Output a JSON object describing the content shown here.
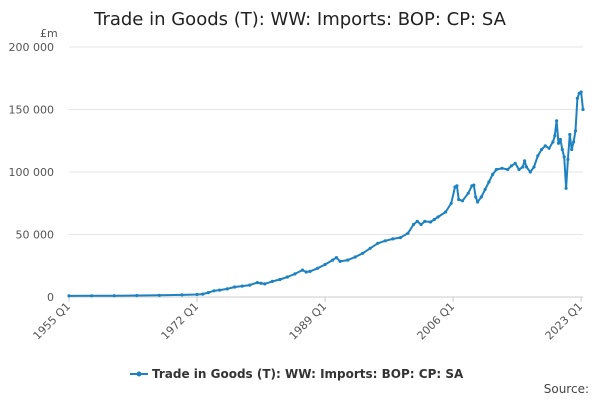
{
  "chart_data": {
    "type": "line",
    "title": "Trade in Goods (T): WW: Imports: BOP: CP: SA",
    "unit_label": "£m",
    "ylim": [
      0,
      200000
    ],
    "yticks": [
      {
        "value": 0,
        "label": "0"
      },
      {
        "value": 50000,
        "label": "50 000"
      },
      {
        "value": 100000,
        "label": "100 000"
      },
      {
        "value": 150000,
        "label": "150 000"
      },
      {
        "value": 200000,
        "label": "200 000"
      }
    ],
    "xlim": [
      1955.0,
      2023.25
    ],
    "xticks": [
      {
        "value": 1955.0,
        "label": "1955 Q1"
      },
      {
        "value": 1972.0,
        "label": "1972 Q1"
      },
      {
        "value": 1989.0,
        "label": "1989 Q1"
      },
      {
        "value": 2006.0,
        "label": "2006 Q1"
      },
      {
        "value": 2023.0,
        "label": "2023 Q1"
      }
    ],
    "grid": true,
    "legend_position": "bottom",
    "source_label": "Source:",
    "colors": {
      "series": "#1f82c0",
      "grid": "#e6e6e6",
      "axis": "#cccccc"
    },
    "series": [
      {
        "name": "Trade in Goods (T): WW: Imports: BOP: CP: SA",
        "points": [
          [
            1955.0,
            900
          ],
          [
            1958.0,
            950
          ],
          [
            1961.0,
            1050
          ],
          [
            1964.0,
            1200
          ],
          [
            1967.0,
            1350
          ],
          [
            1970.0,
            1650
          ],
          [
            1972.0,
            2000
          ],
          [
            1972.75,
            2300
          ],
          [
            1973.5,
            3500
          ],
          [
            1974.25,
            5000
          ],
          [
            1975.0,
            5500
          ],
          [
            1976.0,
            6500
          ],
          [
            1977.0,
            8000
          ],
          [
            1978.0,
            8700
          ],
          [
            1979.0,
            9500
          ],
          [
            1980.0,
            11500
          ],
          [
            1980.5,
            11000
          ],
          [
            1981.0,
            10500
          ],
          [
            1982.0,
            12500
          ],
          [
            1983.0,
            14000
          ],
          [
            1984.0,
            16000
          ],
          [
            1985.0,
            18500
          ],
          [
            1986.0,
            21500
          ],
          [
            1986.5,
            20000
          ],
          [
            1987.0,
            20500
          ],
          [
            1988.0,
            23000
          ],
          [
            1989.0,
            26000
          ],
          [
            1990.0,
            29500
          ],
          [
            1990.5,
            31500
          ],
          [
            1991.0,
            28500
          ],
          [
            1992.0,
            29500
          ],
          [
            1993.0,
            32000
          ],
          [
            1994.0,
            35000
          ],
          [
            1995.0,
            39000
          ],
          [
            1996.0,
            43000
          ],
          [
            1997.0,
            45000
          ],
          [
            1998.0,
            46500
          ],
          [
            1999.0,
            47500
          ],
          [
            2000.0,
            51000
          ],
          [
            2000.75,
            58000
          ],
          [
            2001.25,
            60500
          ],
          [
            2001.75,
            58000
          ],
          [
            2002.25,
            60500
          ],
          [
            2003.0,
            60000
          ],
          [
            2003.5,
            62000
          ],
          [
            2004.0,
            64000
          ],
          [
            2005.0,
            68000
          ],
          [
            2005.75,
            75000
          ],
          [
            2006.25,
            88000
          ],
          [
            2006.5,
            89000
          ],
          [
            2006.75,
            78000
          ],
          [
            2007.25,
            77000
          ],
          [
            2008.0,
            83000
          ],
          [
            2008.5,
            89000
          ],
          [
            2008.75,
            89500
          ],
          [
            2009.0,
            80000
          ],
          [
            2009.25,
            76000
          ],
          [
            2009.75,
            80000
          ],
          [
            2010.25,
            86000
          ],
          [
            2010.75,
            92000
          ],
          [
            2011.25,
            98000
          ],
          [
            2011.75,
            102000
          ],
          [
            2012.5,
            103000
          ],
          [
            2013.25,
            102000
          ],
          [
            2013.75,
            105000
          ],
          [
            2014.25,
            107000
          ],
          [
            2014.75,
            102000
          ],
          [
            2015.25,
            104000
          ],
          [
            2015.5,
            109000
          ],
          [
            2015.75,
            104000
          ],
          [
            2016.25,
            100000
          ],
          [
            2016.75,
            104000
          ],
          [
            2017.25,
            113000
          ],
          [
            2017.75,
            118000
          ],
          [
            2018.25,
            121000
          ],
          [
            2018.75,
            119000
          ],
          [
            2019.25,
            124000
          ],
          [
            2019.5,
            129000
          ],
          [
            2019.75,
            141000
          ],
          [
            2020.0,
            123000
          ],
          [
            2020.25,
            126000
          ],
          [
            2020.5,
            118000
          ],
          [
            2020.75,
            112000
          ],
          [
            2021.0,
            87000
          ],
          [
            2021.25,
            110000
          ],
          [
            2021.5,
            130000
          ],
          [
            2021.75,
            118000
          ],
          [
            2022.0,
            124000
          ],
          [
            2022.25,
            133000
          ],
          [
            2022.5,
            159000
          ],
          [
            2022.75,
            163000
          ],
          [
            2023.0,
            164000
          ],
          [
            2023.25,
            150000
          ]
        ]
      }
    ]
  }
}
